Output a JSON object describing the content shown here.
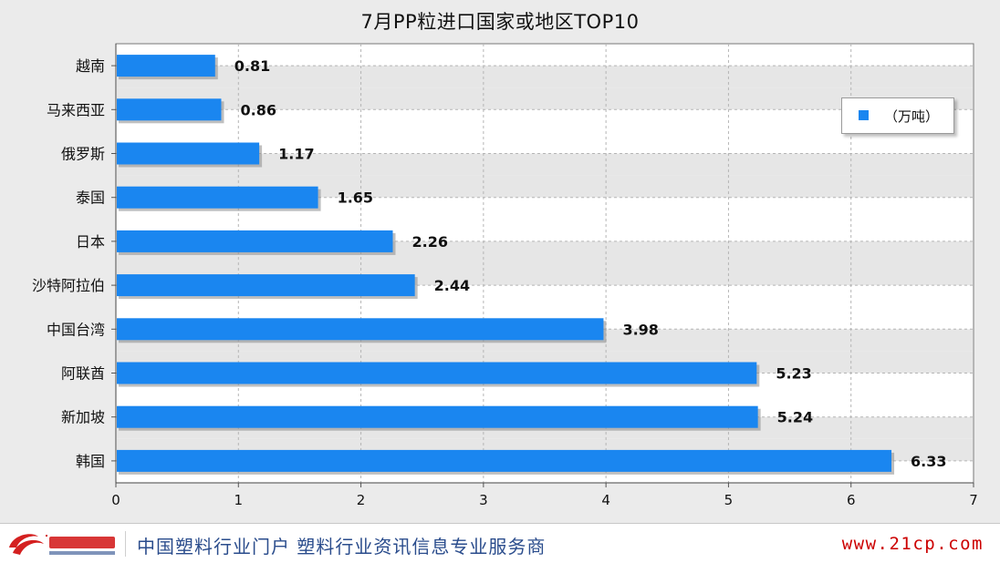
{
  "chart_data": {
    "type": "bar",
    "orientation": "horizontal",
    "title": "7月PP粒进口国家或地区TOP10",
    "categories": [
      "越南",
      "马来西亚",
      "俄罗斯",
      "泰国",
      "日本",
      "沙特阿拉伯",
      "中国台湾",
      "阿联酋",
      "新加坡",
      "韩国"
    ],
    "series": [
      {
        "name": "（万吨）",
        "values": [
          0.81,
          0.86,
          1.17,
          1.65,
          2.26,
          2.44,
          3.98,
          5.23,
          5.24,
          6.33
        ]
      }
    ],
    "data_labels": [
      "0.81",
      "0.86",
      "1.17",
      "1.65",
      "2.26",
      "2.44",
      "3.98",
      "5.23",
      "5.24",
      "6.33"
    ],
    "xlim": [
      0,
      7
    ],
    "ticks": [
      "0",
      "1",
      "2",
      "3",
      "4",
      "5",
      "6",
      "7"
    ],
    "grid": true,
    "legend_position": "top-right",
    "colors": {
      "bar": "#1a86f0",
      "bar_shadow": "#8a8a8a",
      "band": "#e6e6e6"
    }
  },
  "footer": {
    "logo_icon": "zhongsu-logo",
    "slogan": "中国塑料行业门户 塑料行业资讯信息专业服务商",
    "url": "www.21cp.com"
  }
}
